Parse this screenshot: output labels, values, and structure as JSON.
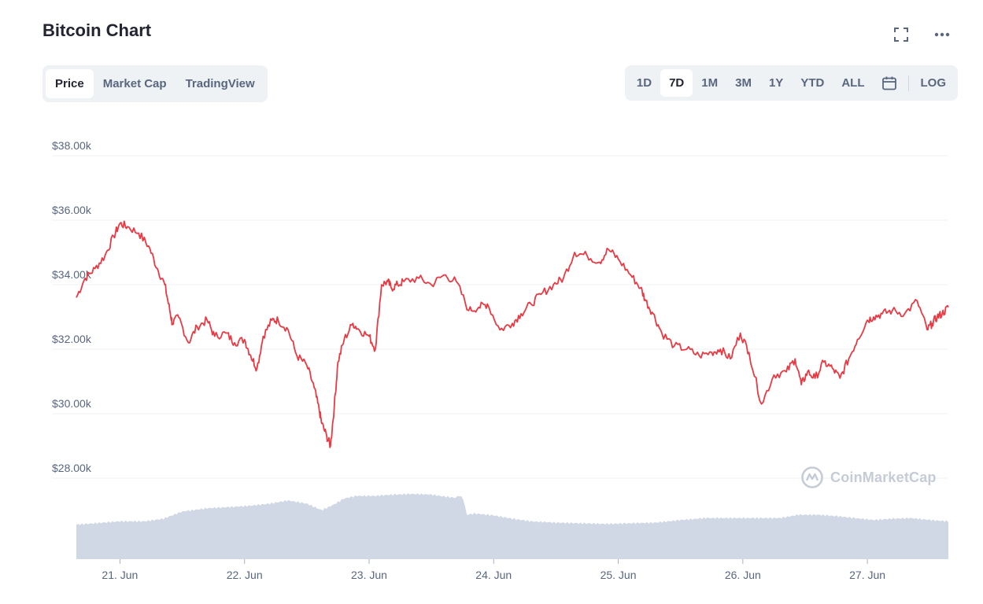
{
  "header": {
    "title": "Bitcoin Chart"
  },
  "icons": {
    "fullscreen": "fullscreen-icon",
    "more": "more-horizontal-icon",
    "calendar": "calendar-icon",
    "brand": "coinmarketcap-logo-icon"
  },
  "view_tabs": [
    {
      "label": "Price",
      "active": true
    },
    {
      "label": "Market Cap",
      "active": false
    },
    {
      "label": "TradingView",
      "active": false
    }
  ],
  "range_tabs": [
    {
      "label": "1D",
      "active": false
    },
    {
      "label": "7D",
      "active": true
    },
    {
      "label": "1M",
      "active": false
    },
    {
      "label": "3M",
      "active": false
    },
    {
      "label": "1Y",
      "active": false
    },
    {
      "label": "YTD",
      "active": false
    },
    {
      "label": "ALL",
      "active": false
    }
  ],
  "log_label": "LOG",
  "watermark": "CoinMarketCap",
  "colors": {
    "line": "#ea3943",
    "volume": "#cfd6e4",
    "grid": "#eff2f5",
    "text": "#58667e"
  },
  "chart_data": {
    "type": "line",
    "title": "",
    "y_tick_labels": [
      "$38.00k",
      "$36.00k",
      "$34.00k",
      "$32.00k",
      "$30.00k",
      "$28.00k"
    ],
    "y_ticks": [
      38000,
      36000,
      34000,
      32000,
      30000,
      28000
    ],
    "ylim": [
      28000,
      38000
    ],
    "x_tick_labels": [
      "21. Jun",
      "22. Jun",
      "23. Jun",
      "24. Jun",
      "25. Jun",
      "26. Jun",
      "27. Jun"
    ],
    "x_ticks": [
      21,
      22,
      23,
      24,
      25,
      26,
      27
    ],
    "xlim": [
      20.65,
      27.65
    ],
    "grid": true,
    "series": [
      {
        "x": [
          20.65,
          20.72,
          20.8,
          20.88,
          20.95,
          21.0,
          21.06,
          21.15,
          21.23,
          21.3,
          21.36,
          21.4,
          21.42,
          21.47,
          21.55,
          21.62,
          21.7,
          21.76,
          21.85,
          21.92,
          22.0,
          22.05,
          22.1,
          22.15,
          22.22,
          22.27,
          22.35,
          22.42,
          22.5,
          22.56,
          22.6,
          22.62,
          22.66,
          22.69,
          22.72,
          22.75,
          22.8,
          22.87,
          22.92,
          23.0,
          23.05,
          23.1,
          23.15,
          23.18,
          23.23,
          23.28,
          23.4,
          23.5,
          23.6,
          23.7,
          23.8,
          23.88,
          23.95,
          24.05,
          24.15,
          24.22,
          24.3,
          24.38,
          24.48,
          24.56,
          24.65,
          24.75,
          24.85,
          24.92,
          25.0,
          25.1,
          25.18,
          25.22,
          25.28,
          25.35,
          25.45,
          25.55,
          25.65,
          25.75,
          25.82,
          25.9,
          25.98,
          26.05,
          26.15,
          26.25,
          26.35,
          26.42,
          26.47,
          26.52,
          26.58,
          26.65,
          26.72,
          26.78,
          26.85,
          26.92,
          27.0,
          27.05,
          27.12,
          27.2,
          27.3,
          27.4,
          27.48,
          27.52,
          27.56,
          27.6,
          27.65
        ],
        "y": [
          33600,
          34200,
          34500,
          34900,
          35500,
          35900,
          35800,
          35600,
          35200,
          34500,
          34000,
          33200,
          32800,
          33000,
          32200,
          32700,
          32900,
          32400,
          32500,
          32200,
          32300,
          31800,
          31400,
          32400,
          32900,
          32900,
          32600,
          31800,
          31500,
          30800,
          30100,
          29700,
          29300,
          29000,
          30200,
          31600,
          32300,
          32800,
          32600,
          32400,
          32000,
          34000,
          34100,
          33900,
          34000,
          34100,
          34200,
          34000,
          34300,
          34100,
          33200,
          33300,
          33400,
          32600,
          32800,
          33100,
          33400,
          33700,
          34000,
          34200,
          35000,
          34900,
          34700,
          35100,
          34800,
          34300,
          33900,
          33500,
          33100,
          32500,
          32100,
          32000,
          31800,
          31900,
          32000,
          31700,
          32500,
          31900,
          30300,
          31200,
          31300,
          31700,
          30900,
          31300,
          31100,
          31600,
          31400,
          31100,
          31700,
          32300,
          32900,
          33000,
          33100,
          33200,
          33100,
          33500,
          32600,
          32800,
          33000,
          33100,
          33300
        ]
      }
    ],
    "volume": {
      "x": [
        20.65,
        20.8,
        21.0,
        21.2,
        21.35,
        21.5,
        21.7,
        21.9,
        22.05,
        22.2,
        22.35,
        22.5,
        22.62,
        22.7,
        22.8,
        22.9,
        23.05,
        23.2,
        23.35,
        23.5,
        23.6,
        23.7,
        23.72,
        23.76,
        23.78,
        23.85,
        24.0,
        24.15,
        24.3,
        24.5,
        24.7,
        24.9,
        25.1,
        25.3,
        25.5,
        25.7,
        25.9,
        26.1,
        26.3,
        26.45,
        26.6,
        26.75,
        26.9,
        27.05,
        27.2,
        27.35,
        27.5,
        27.65
      ],
      "y": [
        0.53,
        0.55,
        0.58,
        0.58,
        0.62,
        0.73,
        0.78,
        0.8,
        0.82,
        0.85,
        0.9,
        0.85,
        0.75,
        0.82,
        0.93,
        0.97,
        0.97,
        0.99,
        1.0,
        0.99,
        0.96,
        0.94,
        0.98,
        0.92,
        0.68,
        0.7,
        0.67,
        0.62,
        0.58,
        0.56,
        0.55,
        0.54,
        0.55,
        0.56,
        0.6,
        0.63,
        0.63,
        0.63,
        0.63,
        0.68,
        0.68,
        0.66,
        0.63,
        0.6,
        0.62,
        0.63,
        0.6,
        0.58
      ]
    }
  }
}
